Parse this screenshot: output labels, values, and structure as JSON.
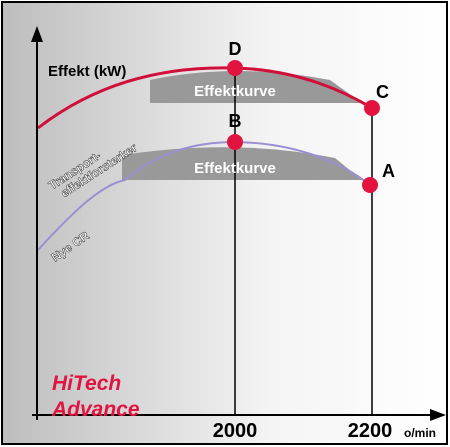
{
  "y_axis_label": "Effekt (kW)",
  "points": {
    "d": "D",
    "c": "C",
    "b": "B",
    "a": "A"
  },
  "bands": [
    "Effektkurve",
    "Effektkurve"
  ],
  "curve_labels": {
    "upper_line1": "Transport-",
    "upper_line2": "effektforsterker",
    "lower": "Nye CR"
  },
  "brand": {
    "line1": "HiTech",
    "line2": "Advance"
  },
  "x_labels": [
    "2000",
    "2200"
  ],
  "x_unit": "o/min"
}
